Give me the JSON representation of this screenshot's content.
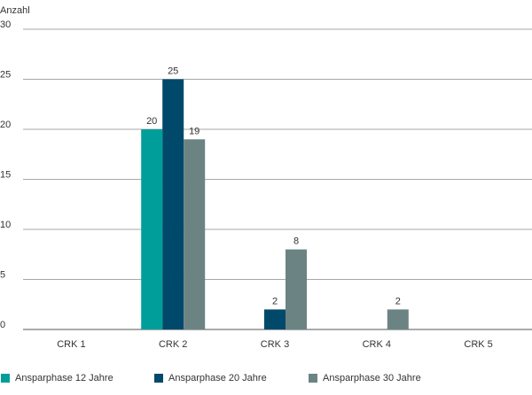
{
  "chart_data": {
    "type": "bar",
    "ylabel": "Anzahl",
    "xlabel": "",
    "ylim": [
      0,
      30
    ],
    "yticks": [
      0,
      5,
      10,
      15,
      20,
      25,
      30
    ],
    "grid": true,
    "legend_placement": "bottom",
    "categories": [
      "CRK 1",
      "CRK 2",
      "CRK 3",
      "CRK 4",
      "CRK 5"
    ],
    "series": [
      {
        "name": "Ansparphase 12 Jahre",
        "color": "#009e9a",
        "values": [
          0,
          20,
          0,
          0,
          0
        ]
      },
      {
        "name": "Ansparphase 20 Jahre",
        "color": "#00496b",
        "values": [
          0,
          25,
          2,
          0,
          0
        ]
      },
      {
        "name": "Ansparphase 30 Jahre",
        "color": "#6c8384",
        "values": [
          0,
          19,
          8,
          2,
          0
        ]
      }
    ]
  }
}
